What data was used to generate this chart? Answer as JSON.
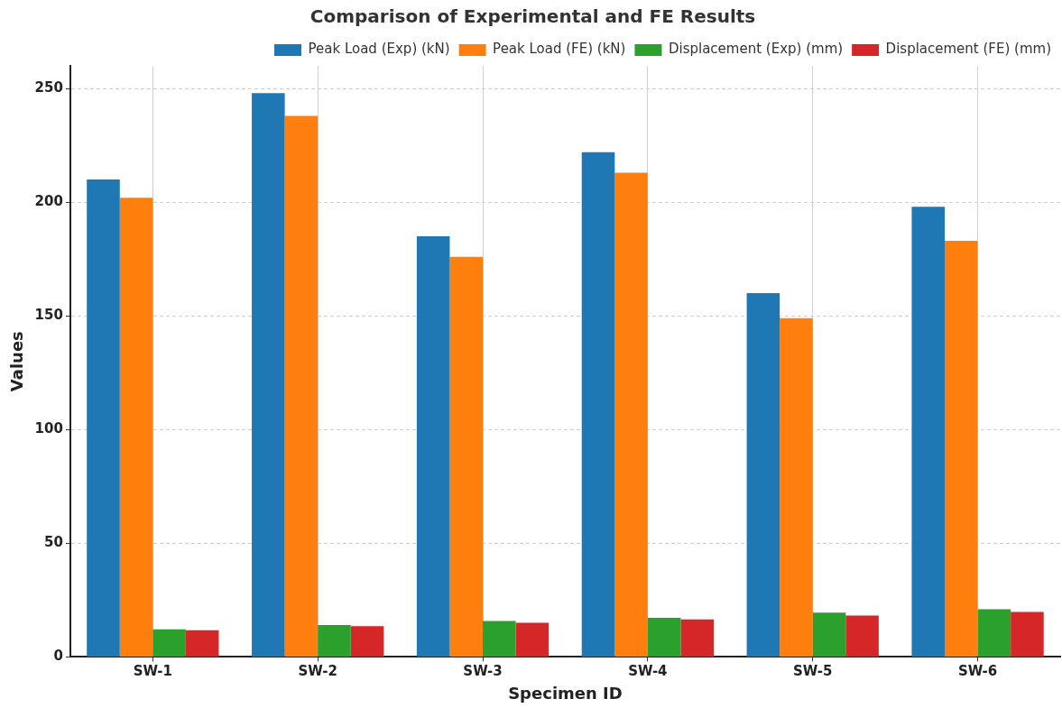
{
  "chart_data": {
    "type": "bar",
    "title": "Comparison of Experimental and FE Results",
    "xlabel": "Specimen ID",
    "ylabel": "Values",
    "categories": [
      "SW-1",
      "SW-2",
      "SW-3",
      "SW-4",
      "SW-5",
      "SW-6"
    ],
    "series": [
      {
        "name": "Peak Load (Exp) (kN)",
        "color": "#1f77b4",
        "values": [
          210,
          248,
          185,
          222,
          160,
          198
        ]
      },
      {
        "name": "Peak Load (FE) (kN)",
        "color": "#ff7f0e",
        "values": [
          202,
          238,
          176,
          213,
          149,
          183
        ]
      },
      {
        "name": "Displacement (Exp) (mm)",
        "color": "#2ca02c",
        "values": [
          12.2,
          14,
          15.8,
          17.2,
          19.5,
          21
        ]
      },
      {
        "name": "Displacement (FE) (mm)",
        "color": "#d62728",
        "values": [
          11.8,
          13.5,
          15,
          16.5,
          18.2,
          19.8
        ]
      }
    ],
    "ylim": [
      0,
      260
    ],
    "yticks": [
      0,
      50,
      100,
      150,
      200,
      250
    ],
    "grid": true,
    "legend": "top right"
  }
}
